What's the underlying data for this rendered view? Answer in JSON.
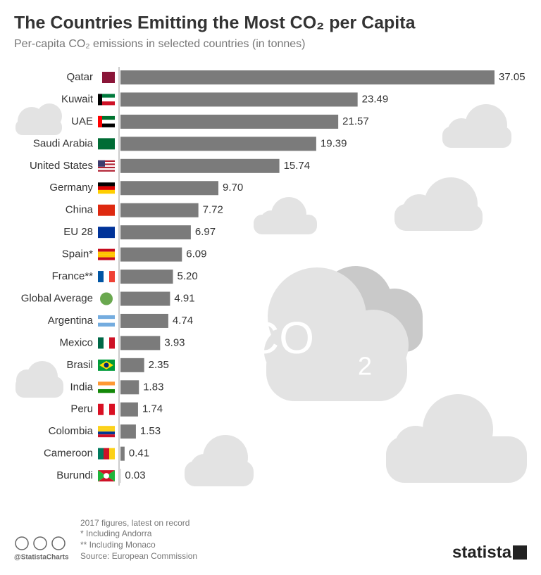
{
  "chart_data": {
    "type": "bar",
    "orientation": "horizontal",
    "title": "The Countries Emitting the Most CO₂ per Capita",
    "subtitle": "Per-capita CO₂ emissions in selected countries (in tonnes)",
    "categories": [
      "Qatar",
      "Kuwait",
      "UAE",
      "Saudi Arabia",
      "United States",
      "Germany",
      "China",
      "EU 28",
      "Spain*",
      "France**",
      "Global Average",
      "Argentina",
      "Mexico",
      "Brasil",
      "India",
      "Peru",
      "Colombia",
      "Cameroon",
      "Burundi"
    ],
    "values": [
      37.05,
      23.49,
      21.57,
      19.39,
      15.74,
      9.7,
      7.72,
      6.97,
      6.09,
      5.2,
      4.91,
      4.74,
      3.93,
      2.35,
      1.83,
      1.74,
      1.53,
      0.41,
      0.03
    ],
    "value_labels": [
      "37.05",
      "23.49",
      "21.57",
      "19.39",
      "15.74",
      "9.70",
      "7.72",
      "6.97",
      "6.09",
      "5.20",
      "4.91",
      "4.74",
      "3.93",
      "2.35",
      "1.83",
      "1.74",
      "1.53",
      "0.41",
      "0.03"
    ],
    "color": "#7b7b7b",
    "illustration": {
      "text": "CO",
      "subscript": "2"
    },
    "footer": {
      "note": "2017 figures, latest on record",
      "note1": "*   Including Andorra",
      "note2": "** Including Monaco",
      "source": "Source: European Commission",
      "handle": "@StatistaCharts",
      "brand": "statista"
    }
  }
}
